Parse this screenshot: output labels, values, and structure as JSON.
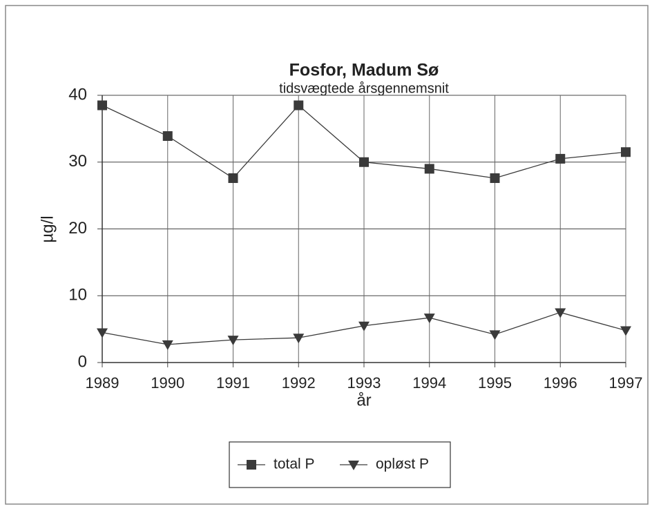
{
  "chart_data": {
    "type": "line",
    "title": "Fosfor, Madum Sø",
    "subtitle": "tidsvægtede årsgennemsnit",
    "x_label": "år",
    "y_label": "µg/l",
    "x": [
      1989,
      1990,
      1991,
      1992,
      1993,
      1994,
      1995,
      1996,
      1997
    ],
    "xlim": [
      1989,
      1997
    ],
    "xticks": [
      1989,
      1990,
      1991,
      1992,
      1993,
      1994,
      1995,
      1996,
      1997
    ],
    "ylim": [
      0,
      40
    ],
    "yticks": [
      0,
      10,
      20,
      30,
      40
    ],
    "grid": true,
    "legend": "bottom",
    "series": [
      {
        "name": "total P",
        "color": "#3a3a3a",
        "marker": "square",
        "values": [
          38.5,
          33.9,
          27.6,
          38.5,
          30.0,
          29.0,
          27.6,
          30.5,
          31.5
        ]
      },
      {
        "name": "opløst P",
        "color": "#3a3a3a",
        "marker": "triangle-down",
        "values": [
          4.5,
          2.7,
          3.4,
          3.7,
          5.5,
          6.7,
          4.2,
          7.5,
          4.8
        ]
      }
    ]
  }
}
